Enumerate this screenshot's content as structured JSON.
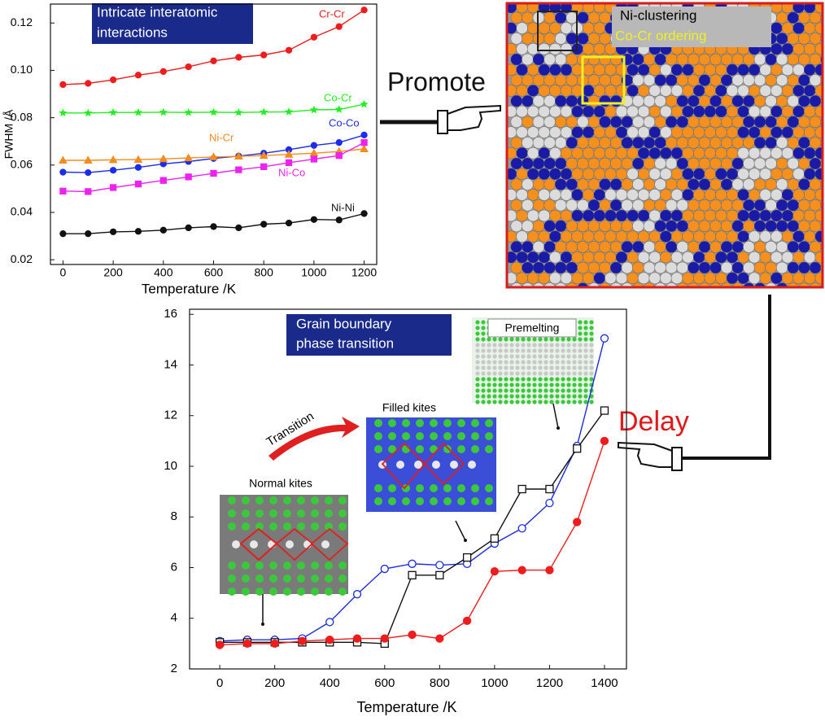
{
  "chart_data": [
    {
      "type": "line",
      "annotation": [
        "Intricate interatomic",
        "interactions"
      ],
      "x_label": "Temperature /K",
      "y_label": "FWHM /Å",
      "x": [
        0,
        100,
        200,
        300,
        400,
        500,
        600,
        700,
        800,
        900,
        1000,
        1100,
        1200
      ],
      "xlim": [
        -50,
        1250
      ],
      "xticks": [
        0,
        200,
        400,
        600,
        800,
        1000,
        1200
      ],
      "ylim": [
        0.018,
        0.128
      ],
      "yticks": [
        0.02,
        0.04,
        0.06,
        0.08,
        {
          "value": 0.1,
          "label": "0.10"
        },
        0.12
      ],
      "series": [
        {
          "name": "Cr-Cr",
          "color": "#ee1c1c",
          "marker": "circle",
          "values": [
            0.094,
            0.0945,
            0.096,
            0.098,
            0.0995,
            0.1015,
            0.104,
            0.1055,
            0.1065,
            0.1085,
            0.114,
            0.1185,
            0.1255
          ]
        },
        {
          "name": "Co-Cr",
          "color": "#22ee22",
          "marker": "star",
          "values": [
            0.082,
            0.082,
            0.0822,
            0.0822,
            0.0823,
            0.0822,
            0.0823,
            0.0822,
            0.0824,
            0.0825,
            0.0833,
            0.0835,
            0.0857
          ]
        },
        {
          "name": "Co-Co",
          "color": "#1c2cee",
          "marker": "circle",
          "values": [
            0.057,
            0.0568,
            0.0578,
            0.059,
            0.0605,
            0.0615,
            0.0628,
            0.0638,
            0.065,
            0.0665,
            0.0683,
            0.0695,
            0.0727
          ]
        },
        {
          "name": "Ni-Cr",
          "color": "#f58a1e",
          "marker": "triangle",
          "values": [
            0.062,
            0.062,
            0.0622,
            0.0623,
            0.0626,
            0.063,
            0.0634,
            0.0637,
            0.064,
            0.0645,
            0.065,
            0.0657,
            0.0668
          ]
        },
        {
          "name": "Ni-Co",
          "color": "#ee22ee",
          "marker": "square",
          "values": [
            0.049,
            0.0488,
            0.0505,
            0.052,
            0.0535,
            0.055,
            0.0565,
            0.058,
            0.0593,
            0.061,
            0.0625,
            0.064,
            0.0695
          ]
        },
        {
          "name": "Ni-Ni",
          "color": "#111111",
          "marker": "circle",
          "values": [
            0.031,
            0.031,
            0.0318,
            0.032,
            0.0325,
            0.0335,
            0.034,
            0.0335,
            0.035,
            0.0355,
            0.037,
            0.0368,
            0.0395
          ]
        }
      ]
    },
    {
      "type": "line",
      "annotation": [
        "Grain boundary",
        "phase transition"
      ],
      "insets": [
        "Normal kites",
        "Filled kites",
        "Premelting"
      ],
      "arrow_label": "Transition",
      "x_label": "Temperature /K",
      "x": [
        0,
        100,
        200,
        300,
        400,
        500,
        600,
        700,
        800,
        900,
        1000,
        1100,
        1200,
        1300,
        1400
      ],
      "xlim": [
        -110,
        1480
      ],
      "xticks": [
        0,
        200,
        400,
        600,
        800,
        1000,
        1200,
        1400
      ],
      "ylim": [
        2,
        16.2
      ],
      "yticks": [
        2,
        4,
        6,
        8,
        10,
        12,
        14,
        16
      ],
      "series": [
        {
          "color": "#1c2cdd",
          "marker": "circle",
          "marker_fill": "none",
          "values": [
            3.1,
            3.15,
            3.15,
            3.2,
            3.85,
            4.95,
            5.95,
            6.15,
            6.1,
            6.15,
            6.95,
            7.55,
            8.55,
            10.8,
            15.05
          ]
        },
        {
          "color": "#111111",
          "marker": "square",
          "marker_fill": "none",
          "values": [
            3.05,
            3.05,
            3.05,
            3.05,
            3.05,
            3.05,
            3.0,
            5.7,
            5.7,
            6.4,
            7.15,
            9.1,
            9.1,
            10.7,
            12.2
          ]
        },
        {
          "color": "#ee1c1c",
          "marker": "circle",
          "values": [
            2.95,
            3.0,
            3.0,
            3.1,
            3.15,
            3.2,
            3.2,
            3.35,
            3.2,
            3.9,
            5.85,
            5.9,
            5.9,
            7.8,
            11.0
          ]
        }
      ]
    }
  ],
  "figure": {
    "promote": "Promote",
    "delay": "Delay",
    "map_labels": [
      "Ni-clustering",
      "Co-Cr ordering"
    ]
  }
}
